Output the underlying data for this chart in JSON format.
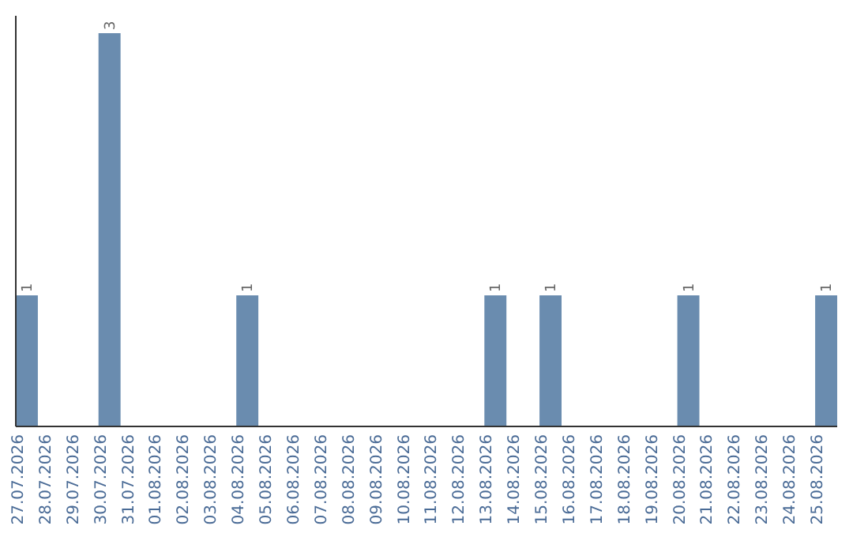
{
  "chart_data": {
    "type": "bar",
    "categories": [
      "27.07.2026",
      "28.07.2026",
      "29.07.2026",
      "30.07.2026",
      "31.07.2026",
      "01.08.2026",
      "02.08.2026",
      "03.08.2026",
      "04.08.2026",
      "05.08.2026",
      "06.08.2026",
      "07.08.2026",
      "08.08.2026",
      "09.08.2026",
      "10.08.2026",
      "11.08.2026",
      "12.08.2026",
      "13.08.2026",
      "14.08.2026",
      "15.08.2026",
      "16.08.2026",
      "17.08.2026",
      "18.08.2026",
      "19.08.2026",
      "20.08.2026",
      "21.08.2026",
      "22.08.2026",
      "23.08.2026",
      "24.08.2026",
      "25.08.2026"
    ],
    "values": [
      1,
      0,
      0,
      3,
      0,
      0,
      0,
      0,
      1,
      0,
      0,
      0,
      0,
      0,
      0,
      0,
      0,
      1,
      0,
      1,
      0,
      0,
      0,
      0,
      1,
      0,
      0,
      0,
      0,
      1
    ],
    "value_labels": [
      "1",
      null,
      null,
      "3",
      null,
      null,
      null,
      null,
      "1",
      null,
      null,
      null,
      null,
      null,
      null,
      null,
      null,
      "1",
      null,
      "1",
      null,
      null,
      null,
      null,
      "1",
      null,
      null,
      null,
      null,
      "1"
    ],
    "color": "#6a8caf",
    "tick_labels": "x"
  }
}
